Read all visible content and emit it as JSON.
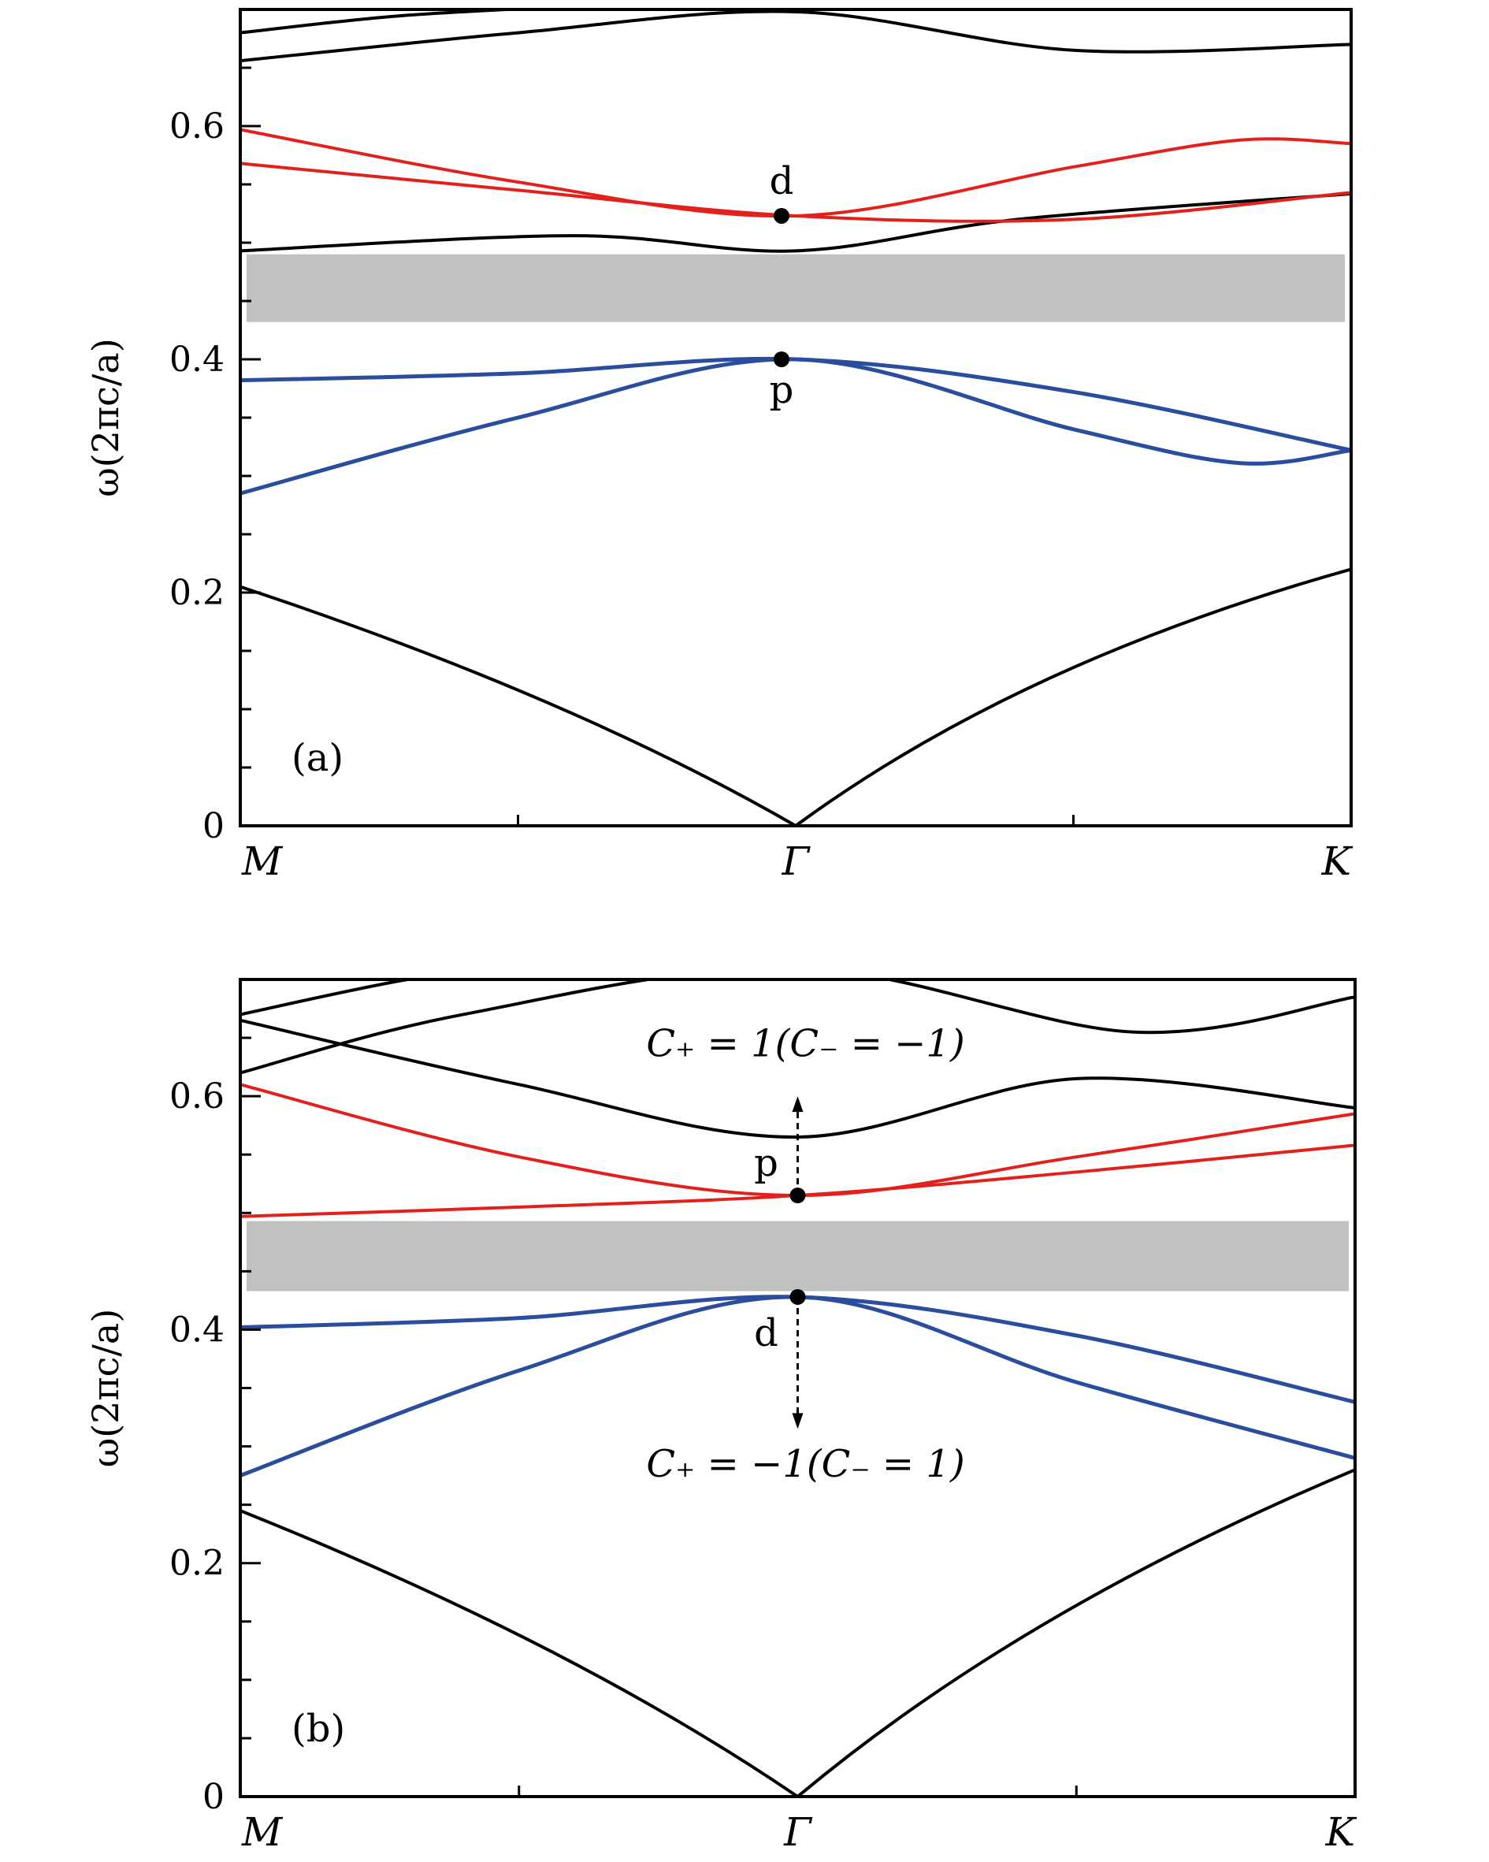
{
  "chart_data": [
    {
      "panel_label": "(a)",
      "type": "line",
      "ylabel": "ω(2πc/a)",
      "ylim": [
        0,
        0.7
      ],
      "yticks": [
        0,
        0.2,
        0.4,
        0.6
      ],
      "ytick_labels": [
        "0",
        "0.2",
        "0.4",
        "0.6"
      ],
      "x_labels": [
        "M",
        "Γ",
        "K"
      ],
      "band_gap": [
        0.432,
        0.49
      ],
      "series": [
        {
          "color": "#000000",
          "k": [
            0,
            0.5,
            1
          ],
          "values": [
            0.205,
            0.0,
            0.22
          ],
          "ctrl": [
            [
              0.3,
              0.11
            ],
            [
              0.7,
              0.14
            ]
          ]
        },
        {
          "color": "#2a4d9e",
          "k": [
            0,
            0.25,
            0.5,
            0.75,
            0.9,
            1
          ],
          "values": [
            0.285,
            0.35,
            0.4,
            0.34,
            0.311,
            0.322
          ]
        },
        {
          "color": "#2a4d9e",
          "k": [
            0,
            0.25,
            0.5,
            0.75,
            1
          ],
          "values": [
            0.382,
            0.388,
            0.4,
            0.372,
            0.322
          ]
        },
        {
          "color": "#000000",
          "k": [
            0,
            0.3,
            0.5,
            0.7,
            1
          ],
          "values": [
            0.493,
            0.506,
            0.493,
            0.52,
            0.542
          ]
        },
        {
          "color": "#e3211c",
          "k": [
            0,
            0.25,
            0.5,
            0.75,
            1
          ],
          "values": [
            0.568,
            0.545,
            0.523,
            0.52,
            0.543
          ]
        },
        {
          "color": "#e3211c",
          "k": [
            0,
            0.25,
            0.5,
            0.75,
            0.9,
            1
          ],
          "values": [
            0.597,
            0.552,
            0.523,
            0.565,
            0.588,
            0.585
          ]
        },
        {
          "color": "#000000",
          "k": [
            0,
            0.25,
            0.5,
            0.75,
            1
          ],
          "values": [
            0.656,
            0.68,
            0.698,
            0.665,
            0.67
          ]
        },
        {
          "color": "#000000",
          "k": [
            0,
            0.15,
            0.35
          ],
          "values": [
            0.68,
            0.695,
            0.705
          ]
        }
      ],
      "points": [
        {
          "label": "d",
          "k": 0.5,
          "value": 0.523,
          "label_pos": "above"
        },
        {
          "label": "p",
          "k": 0.5,
          "value": 0.4,
          "label_pos": "below"
        }
      ]
    },
    {
      "panel_label": "(b)",
      "type": "line",
      "ylabel": "ω(2πc/a)",
      "ylim": [
        0,
        0.7
      ],
      "yticks": [
        0,
        0.2,
        0.4,
        0.6
      ],
      "ytick_labels": [
        "0",
        "0.2",
        "0.4",
        "0.6"
      ],
      "x_labels": [
        "M",
        "Γ",
        "K"
      ],
      "band_gap": [
        0.433,
        0.493
      ],
      "series": [
        {
          "color": "#000000",
          "k": [
            0,
            0.5,
            1
          ],
          "values": [
            0.245,
            0.0,
            0.28
          ],
          "ctrl": [
            [
              0.3,
              0.13
            ],
            [
              0.7,
              0.16
            ]
          ]
        },
        {
          "color": "#2a4d9e",
          "k": [
            0,
            0.25,
            0.5,
            0.75,
            1
          ],
          "values": [
            0.275,
            0.365,
            0.428,
            0.355,
            0.29
          ]
        },
        {
          "color": "#2a4d9e",
          "k": [
            0,
            0.25,
            0.5,
            0.75,
            1
          ],
          "values": [
            0.402,
            0.41,
            0.428,
            0.395,
            0.338
          ]
        },
        {
          "color": "#e3211c",
          "k": [
            0,
            0.25,
            0.5,
            0.75,
            1
          ],
          "values": [
            0.497,
            0.505,
            0.515,
            0.535,
            0.558
          ]
        },
        {
          "color": "#e3211c",
          "k": [
            0,
            0.25,
            0.5,
            0.75,
            1
          ],
          "values": [
            0.61,
            0.548,
            0.515,
            0.548,
            0.585
          ]
        },
        {
          "color": "#000000",
          "k": [
            0,
            0.25,
            0.5,
            0.75,
            1
          ],
          "values": [
            0.665,
            0.61,
            0.565,
            0.615,
            0.59
          ]
        },
        {
          "color": "#000000",
          "k": [
            0,
            0.2,
            0.5,
            0.8,
            1
          ],
          "values": [
            0.62,
            0.67,
            0.71,
            0.655,
            0.685
          ]
        },
        {
          "color": "#000000",
          "k": [
            0,
            0.15,
            0.3,
            0.45
          ],
          "values": [
            0.67,
            0.7,
            0.72,
            0.72
          ]
        }
      ],
      "points": [
        {
          "label": "p",
          "k": 0.5,
          "value": 0.515,
          "label_pos": "above-left"
        },
        {
          "label": "d",
          "k": 0.5,
          "value": 0.428,
          "label_pos": "below-left"
        }
      ],
      "arrows": [
        {
          "k": 0.5,
          "from": 0.515,
          "to": 0.6
        },
        {
          "k": 0.5,
          "from": 0.428,
          "to": 0.315
        }
      ],
      "annotations": [
        {
          "text": "C₊ = 1(C₋ = −1)",
          "k": 0.5,
          "value": 0.645
        },
        {
          "text": "C₊ = −1(C₋ = 1)",
          "k": 0.5,
          "value": 0.285
        }
      ]
    }
  ]
}
